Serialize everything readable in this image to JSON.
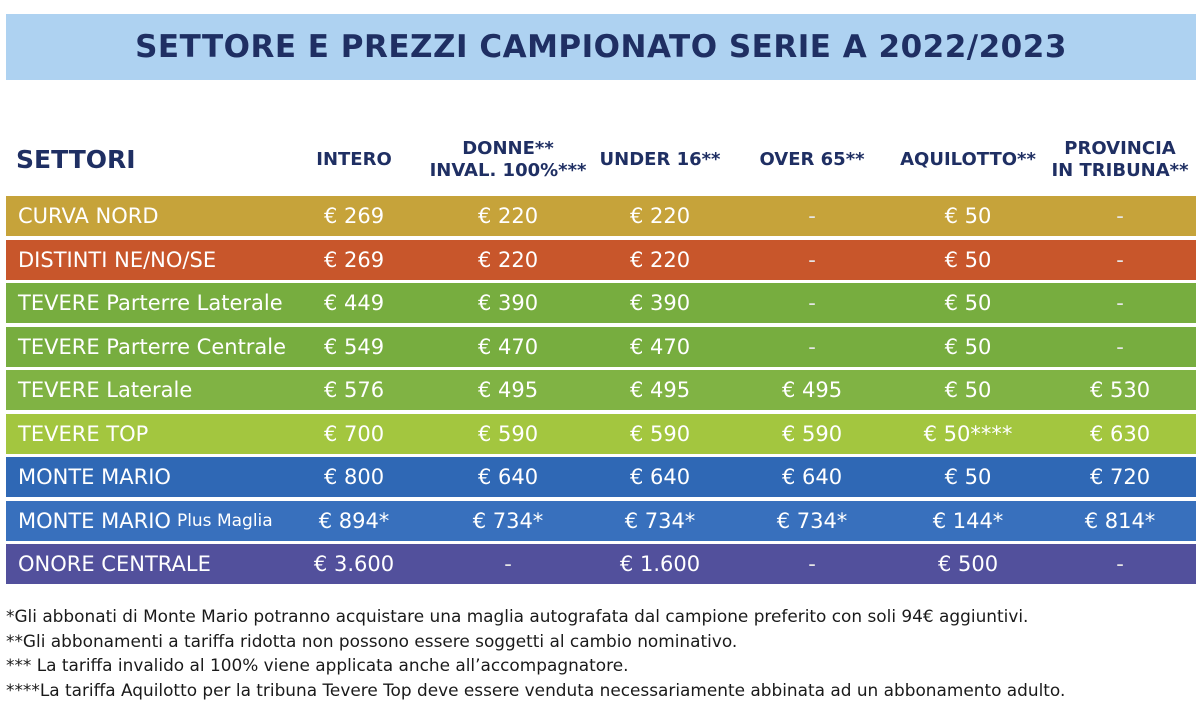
{
  "title": "SETTORE E PREZZI CAMPIONATO SERIE A 2022/2023",
  "header": {
    "settori": "SETTORI",
    "columns": [
      [
        "INTERO"
      ],
      [
        "DONNE**",
        "INVAL. 100%***"
      ],
      [
        "UNDER 16**"
      ],
      [
        "OVER 65**"
      ],
      [
        "AQUILOTTO**"
      ],
      [
        "PROVINCIA",
        "IN TRIBUNA**"
      ]
    ]
  },
  "rows": [
    {
      "name": "CURVA NORD",
      "name_small": "",
      "color": "#c6a33a",
      "values": [
        "€ 269",
        "€ 220",
        "€ 220",
        "-",
        "€ 50",
        "-"
      ]
    },
    {
      "name": "DISTINTI NE/NO/SE",
      "name_small": "",
      "color": "#c8562b",
      "values": [
        "€ 269",
        "€ 220",
        "€ 220",
        "-",
        "€ 50",
        "-"
      ]
    },
    {
      "name": "TEVERE Parterre Laterale",
      "name_small": "",
      "color": "#77ad3f",
      "values": [
        "€ 449",
        "€ 390",
        "€ 390",
        "-",
        "€ 50",
        "-"
      ]
    },
    {
      "name": "TEVERE Parterre Centrale",
      "name_small": "",
      "color": "#77ad3f",
      "values": [
        "€ 549",
        "€ 470",
        "€ 470",
        "-",
        "€ 50",
        "-"
      ]
    },
    {
      "name": "TEVERE Laterale",
      "name_small": "",
      "color": "#80b344",
      "values": [
        "€ 576",
        "€ 495",
        "€ 495",
        "€ 495",
        "€ 50",
        "€ 530"
      ]
    },
    {
      "name": "TEVERE TOP",
      "name_small": "",
      "color": "#a3c63f",
      "values": [
        "€ 700",
        "€ 590",
        "€ 590",
        "€ 590",
        "€ 50****",
        "€ 630"
      ]
    },
    {
      "name": "MONTE MARIO",
      "name_small": "",
      "color": "#2f68b5",
      "values": [
        "€ 800",
        "€ 640",
        "€ 640",
        "€ 640",
        "€ 50",
        "€ 720"
      ]
    },
    {
      "name": "MONTE MARIO",
      "name_small": "Plus Maglia",
      "color": "#3870bd",
      "values": [
        "€ 894*",
        "€ 734*",
        "€ 734*",
        "€ 734*",
        "€ 144*",
        "€ 814*"
      ]
    },
    {
      "name": "ONORE CENTRALE",
      "name_small": "",
      "color": "#52509c",
      "values": [
        "€ 3.600",
        "-",
        "€ 1.600",
        "-",
        "€ 500",
        "-"
      ]
    }
  ],
  "footnotes": [
    "*Gli abbonati di Monte Mario potranno acquistare una maglia autografata dal campione preferito con soli 94€ aggiuntivi.",
    "**Gli abbonamenti a tariffa ridotta non possono essere soggetti al cambio nominativo.",
    "*** La tariffa invalido al 100% viene applicata anche all’accompagnatore.",
    "****La tariffa Aquilotto per la tribuna Tevere Top deve essere venduta necessariamente abbinata ad un abbonamento adulto."
  ]
}
